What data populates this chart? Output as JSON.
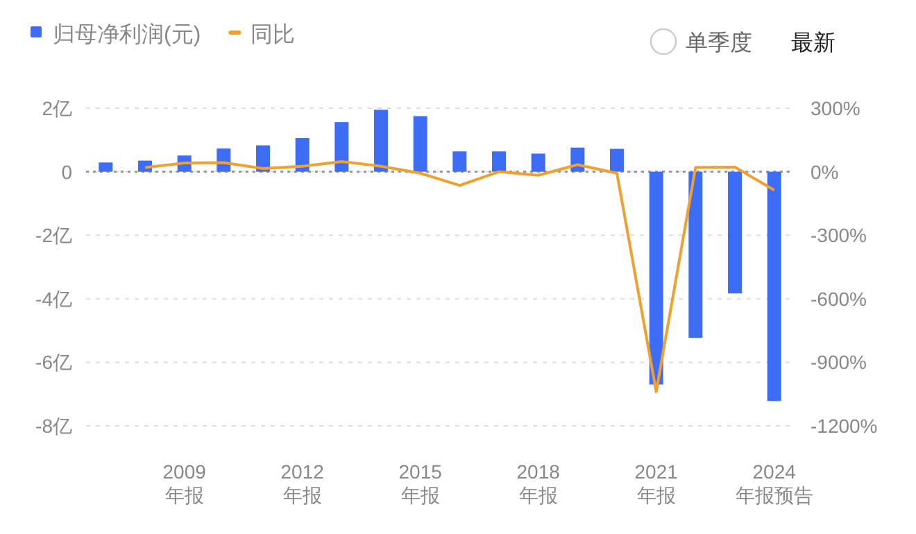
{
  "chart_data": {
    "type": "bar",
    "categories": [
      null,
      null,
      "2009\n年报",
      null,
      null,
      "2012\n年报",
      null,
      null,
      "2015\n年报",
      null,
      null,
      "2018\n年报",
      null,
      null,
      "2021\n年报",
      null,
      null,
      "2024\n年报预告"
    ],
    "series": [
      {
        "name": "归母净利润(元)",
        "color": "#3d6cf5",
        "values": [
          0.29,
          0.35,
          0.51,
          0.73,
          0.83,
          1.06,
          1.56,
          1.95,
          1.75,
          0.64,
          0.64,
          0.57,
          0.76,
          0.72,
          -6.7,
          -5.23,
          -3.83,
          -7.22
        ]
      },
      {
        "name": "同比",
        "type": "line",
        "axis": "y2",
        "color": "#f0a030",
        "values": [
          null,
          20,
          41,
          43,
          15,
          26,
          48,
          26,
          -7,
          -65,
          0,
          -17,
          33,
          -7,
          -1039,
          20,
          22,
          -87
        ]
      }
    ],
    "ylim": [
      -8,
      2
    ],
    "yticks": [
      {
        "value": 2,
        "label": "2亿"
      },
      {
        "value": 0,
        "label": "0"
      },
      {
        "value": -2,
        "label": "-2亿"
      },
      {
        "value": -4,
        "label": "-4亿"
      },
      {
        "value": -6,
        "label": "-6亿"
      },
      {
        "value": -8,
        "label": "-8亿"
      }
    ],
    "y2lim": [
      -1200,
      300
    ],
    "y2ticks": [
      {
        "value": 300,
        "label": "300%"
      },
      {
        "value": 0,
        "label": "0%"
      },
      {
        "value": -300,
        "label": "-300%"
      },
      {
        "value": -600,
        "label": "-600%"
      },
      {
        "value": -900,
        "label": "-900%"
      },
      {
        "value": -1200,
        "label": "-1200%"
      }
    ],
    "ref_lines": [
      {
        "axis": "y",
        "value": 0,
        "color": "#999999",
        "line_style": "dotted"
      }
    ],
    "grid": "y",
    "legend": "top left",
    "marker": "none",
    "line_style": "solid",
    "annotations": [
      "单季度",
      "最新"
    ]
  }
}
